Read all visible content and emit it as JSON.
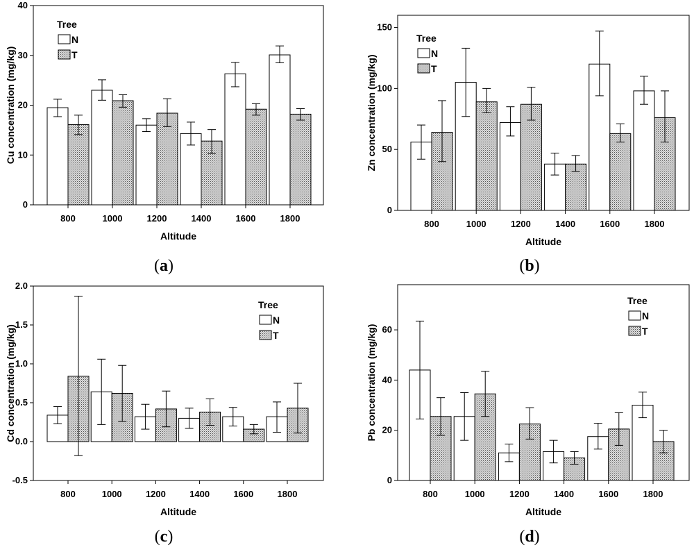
{
  "colors": {
    "n_fill": "#ffffff",
    "t_fill": "#c9c9c9",
    "stroke": "#000000",
    "background": "#ffffff"
  },
  "legend": {
    "title": "Tree",
    "n_label": "N",
    "t_label": "T"
  },
  "chart_data": [
    {
      "type": "bar",
      "panel_label": "a",
      "categories": [
        "800",
        "1000",
        "1200",
        "1400",
        "1600",
        "1800"
      ],
      "xlabel": "Altitude",
      "ylabel": "Cu concentration (mg/kg)",
      "ylim": [
        0,
        40
      ],
      "yticks": [
        0,
        10,
        20,
        30,
        40
      ],
      "legend_position": "top-left",
      "series": [
        {
          "name": "N",
          "values": [
            19.5,
            23.0,
            16.0,
            14.3,
            26.3,
            30.1
          ],
          "err_low": [
            17.7,
            21.0,
            14.7,
            12.0,
            23.7,
            28.5
          ],
          "err_high": [
            21.2,
            25.1,
            17.3,
            16.6,
            28.6,
            31.9
          ]
        },
        {
          "name": "T",
          "values": [
            16.1,
            20.9,
            18.4,
            12.8,
            19.2,
            18.2
          ],
          "err_low": [
            14.1,
            19.6,
            15.7,
            10.3,
            18.0,
            17.0
          ],
          "err_high": [
            18.0,
            22.1,
            21.3,
            15.1,
            20.3,
            19.3
          ]
        }
      ]
    },
    {
      "type": "bar",
      "panel_label": "b",
      "categories": [
        "800",
        "1000",
        "1200",
        "1400",
        "1600",
        "1800"
      ],
      "xlabel": "Altitude",
      "ylabel": "Zn concentration (mg/kg)",
      "ylim": [
        0,
        160
      ],
      "yticks": [
        0,
        50,
        100,
        150
      ],
      "legend_position": "top-left",
      "series": [
        {
          "name": "N",
          "values": [
            56.0,
            105.0,
            72.0,
            38.0,
            120.0,
            98.0
          ],
          "err_low": [
            42.0,
            77.0,
            61.0,
            29.0,
            94.0,
            87.0
          ],
          "err_high": [
            70.0,
            133.0,
            85.0,
            47.0,
            147.0,
            110.0
          ]
        },
        {
          "name": "T",
          "values": [
            64.0,
            89.0,
            87.0,
            38.0,
            63.0,
            76.0
          ],
          "err_low": [
            40.0,
            80.0,
            74.0,
            32.0,
            56.0,
            56.0
          ],
          "err_high": [
            90.0,
            100.0,
            101.0,
            45.0,
            71.0,
            98.0
          ]
        }
      ]
    },
    {
      "type": "bar",
      "panel_label": "c",
      "categories": [
        "800",
        "1000",
        "1200",
        "1400",
        "1600",
        "1800"
      ],
      "xlabel": "Altitude",
      "ylabel": "Cd concentration (mg/kg)",
      "ylim": [
        -0.5,
        2.0
      ],
      "yticks": [
        -0.5,
        0.0,
        0.5,
        1.0,
        1.5,
        2.0
      ],
      "ytick_labels": [
        "-0.5",
        "0.0",
        "0.5",
        "1.0",
        "1.5",
        "2.0"
      ],
      "legend_position": "top-right",
      "series": [
        {
          "name": "N",
          "values": [
            0.34,
            0.64,
            0.32,
            0.3,
            0.32,
            0.32
          ],
          "err_low": [
            0.23,
            0.22,
            0.16,
            0.17,
            0.2,
            0.12
          ],
          "err_high": [
            0.45,
            1.06,
            0.48,
            0.43,
            0.44,
            0.51
          ]
        },
        {
          "name": "T",
          "values": [
            0.84,
            0.62,
            0.42,
            0.38,
            0.16,
            0.43
          ],
          "err_low": [
            -0.18,
            0.26,
            0.19,
            0.21,
            0.1,
            0.11
          ],
          "err_high": [
            1.87,
            0.98,
            0.65,
            0.55,
            0.22,
            0.75
          ]
        }
      ]
    },
    {
      "type": "bar",
      "panel_label": "d",
      "categories": [
        "800",
        "1000",
        "1200",
        "1400",
        "1600",
        "1800"
      ],
      "xlabel": "Altitude",
      "ylabel": "Pb concentration (mg/kg)",
      "ylim": [
        0,
        78
      ],
      "yticks": [
        0,
        20,
        40,
        60
      ],
      "legend_position": "top-right",
      "series": [
        {
          "name": "N",
          "values": [
            44.0,
            25.5,
            11.0,
            11.5,
            17.5,
            30.0
          ],
          "err_low": [
            24.5,
            16.0,
            7.5,
            7.0,
            12.5,
            25.0
          ],
          "err_high": [
            63.5,
            35.0,
            14.5,
            16.0,
            22.8,
            35.2
          ]
        },
        {
          "name": "T",
          "values": [
            25.5,
            34.5,
            22.5,
            9.0,
            20.5,
            15.5
          ],
          "err_low": [
            18.0,
            25.5,
            16.5,
            6.5,
            14.0,
            11.0
          ],
          "err_high": [
            33.0,
            43.5,
            29.0,
            11.5,
            27.0,
            20.0
          ]
        }
      ]
    }
  ]
}
